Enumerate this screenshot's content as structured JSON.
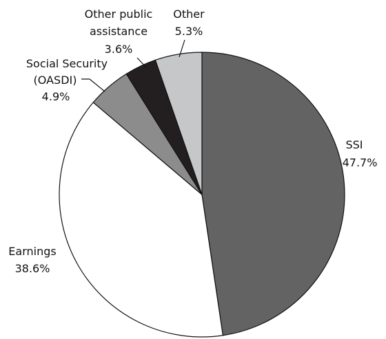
{
  "chart_data": {
    "type": "pie",
    "title": "",
    "start_angle_deg": 0,
    "direction": "clockwise",
    "slices": [
      {
        "key": "ssi",
        "label": "SSI",
        "value": 47.7,
        "value_label": "47.7%",
        "color": "#636363"
      },
      {
        "key": "earnings",
        "label": "Earnings",
        "value": 38.6,
        "value_label": "38.6%",
        "color": "#ffffff"
      },
      {
        "key": "social-security",
        "label": "Social Security (OASDI)",
        "label_line1": "Social Security",
        "label_line2": "(OASDI)",
        "value": 4.9,
        "value_label": "4.9%",
        "color": "#8c8c8c"
      },
      {
        "key": "other-public-assistance",
        "label": "Other public assistance",
        "label_line1": "Other public",
        "label_line2": "assistance",
        "value": 3.6,
        "value_label": "3.6%",
        "color": "#231f20"
      },
      {
        "key": "other",
        "label": "Other",
        "value": 5.3,
        "value_label": "5.3%",
        "color": "#c6c7c9"
      }
    ]
  }
}
